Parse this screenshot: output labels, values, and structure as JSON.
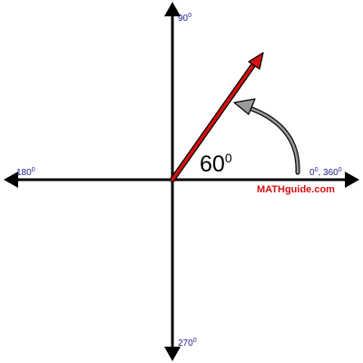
{
  "colors": {
    "axis": "#000000",
    "vector": "#d41010",
    "rotation_arrow": "#9a9a9a",
    "degree_labels": "#1a1a8c",
    "brand": "#d41010"
  },
  "labels": {
    "deg_90": {
      "value": "90",
      "sup": "0"
    },
    "deg_180": {
      "value": "180",
      "sup": "0"
    },
    "deg_270": {
      "value": "270",
      "sup": "0"
    },
    "deg_0_360": {
      "value": "0",
      "sup": "0",
      "sep": ", 360",
      "sup2": "0"
    }
  },
  "angle": {
    "value": "60",
    "sup": "0",
    "degrees": 60
  },
  "brand": "MATHguide.com"
}
